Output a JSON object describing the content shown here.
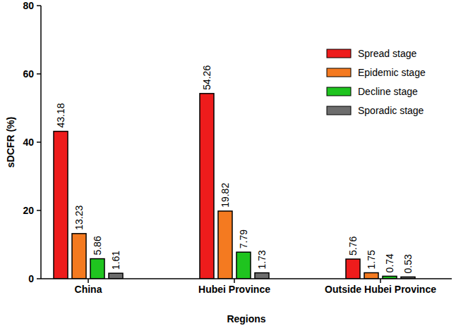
{
  "chart_data": {
    "type": "bar",
    "x_label": "Regions",
    "y_label": "sDCFR (%)",
    "categories": [
      "China",
      "Hubei Province",
      "Outside Hubei Province"
    ],
    "series": [
      {
        "name": "Spread stage",
        "color": "#ee1c1c",
        "values": [
          43.18,
          54.26,
          5.76
        ]
      },
      {
        "name": "Epidemic stage",
        "color": "#f47a20",
        "values": [
          13.23,
          19.82,
          1.75
        ]
      },
      {
        "name": "Decline stage",
        "color": "#1fc41f",
        "values": [
          5.86,
          7.79,
          0.74
        ]
      },
      {
        "name": "Sporadic stage",
        "color": "#6d6d6d",
        "values": [
          1.61,
          1.73,
          0.53
        ]
      }
    ],
    "ylim": [
      0,
      80
    ],
    "yticks": [
      0,
      20,
      40,
      60,
      80
    ],
    "grid": false,
    "legend": "upper right",
    "data_labels": true
  }
}
